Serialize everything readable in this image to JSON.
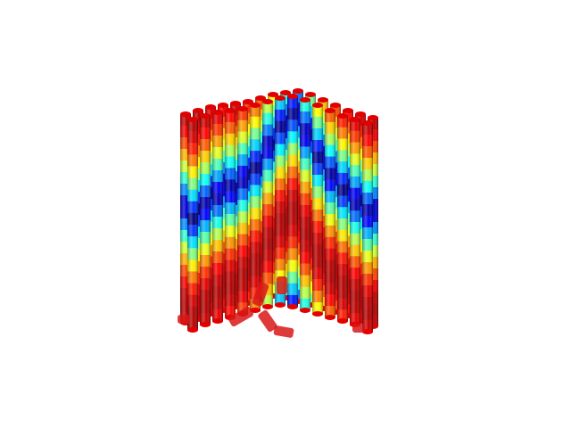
{
  "scene": {
    "name": "cylinder-bundle-render",
    "background": "#ffffff",
    "colormap": "jet",
    "colormap_stops": [
      "#00007f",
      "#0000ff",
      "#0080ff",
      "#00ffff",
      "#80ff80",
      "#ffff00",
      "#ff8000",
      "#ff0000",
      "#7f0000"
    ],
    "end_cap_color": "#e00000"
  }
}
